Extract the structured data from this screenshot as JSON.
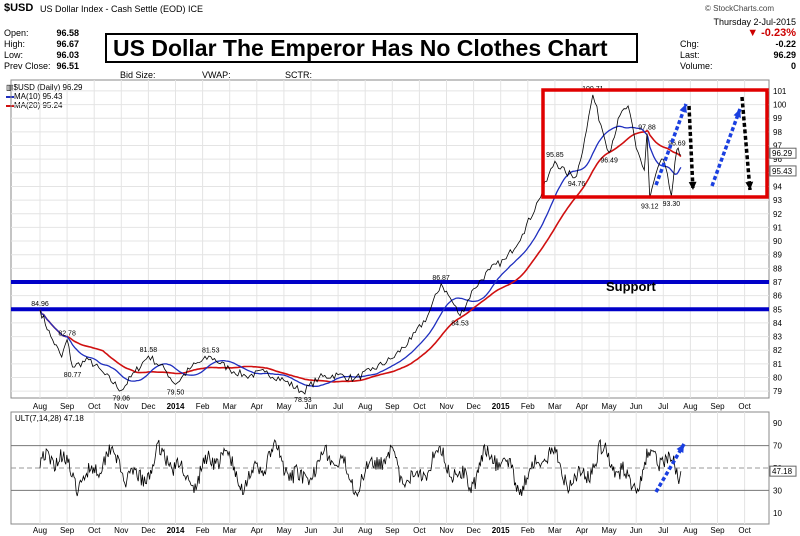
{
  "header": {
    "symbol": "$USD",
    "description": "US Dollar Index - Cash Settle (EOD)",
    "exchange": "ICE",
    "copyright": "© StockCharts.com",
    "day_date": "Thursday  2-Jul-2015",
    "pct_change": "▼ -0.23%",
    "stats_left": [
      {
        "label": "Open:",
        "value": "96.58"
      },
      {
        "label": "High:",
        "value": "96.67"
      },
      {
        "label": "Low:",
        "value": "96.03"
      },
      {
        "label": "Prev Close:",
        "value": "96.51"
      }
    ],
    "stats_right": [
      {
        "label": "Chg:",
        "value": "-0.22"
      },
      {
        "label": "Last:",
        "value": "96.29"
      },
      {
        "label": "Volume:",
        "value": "0"
      }
    ],
    "bid_size": "Bid Size:",
    "vwap": "VWAP:",
    "sctr": "SCTR:"
  },
  "title": "US Dollar The Emperor Has No Clothes Chart",
  "legend": {
    "line1": "▥$USD (Daily) 96.29",
    "line2": "MA(10) 95.43",
    "line3": "MA(20) 95.24"
  },
  "support_label": "Support",
  "osc_label": "ULT(7,14,28) 47.18",
  "colors": {
    "price": "#000000",
    "ma10": "#1f2fbf",
    "ma20": "#d01010",
    "support": "#0000c8",
    "box": "#e00000",
    "up_arrow": "#1a3fe0",
    "down_arrow": "#000000",
    "pct_down": "#cc0000"
  },
  "chart_data": [
    {
      "type": "line",
      "series": [
        {
          "name": "$USD (Daily)",
          "last": 96.29
        },
        {
          "name": "MA(10)",
          "last": 95.43
        },
        {
          "name": "MA(20)",
          "last": 95.24
        }
      ],
      "x_ticks": [
        "Aug",
        "Sep",
        "Oct",
        "Nov",
        "Dec",
        "2014",
        "Feb",
        "Mar",
        "Apr",
        "May",
        "Jun",
        "Jul",
        "Aug",
        "Sep",
        "Oct",
        "Nov",
        "Dec",
        "2015",
        "Feb",
        "Mar",
        "Apr",
        "May",
        "Jun",
        "Jul",
        "Aug",
        "Sep",
        "Oct"
      ],
      "y_ticks": [
        79,
        80,
        81,
        82,
        83,
        84,
        85,
        86,
        87,
        88,
        89,
        90,
        91,
        92,
        93,
        94,
        95,
        96,
        97,
        98,
        99,
        100,
        101
      ],
      "ylim": [
        78.5,
        101.8
      ],
      "annotations": [
        {
          "label": "84.96",
          "x_index": 0.0,
          "y": 84.96
        },
        {
          "label": "82.78",
          "x_index": 1.0,
          "y": 82.78
        },
        {
          "label": "80.77",
          "x_index": 1.2,
          "y": 80.77
        },
        {
          "label": "79.06",
          "x_index": 3.0,
          "y": 79.06
        },
        {
          "label": "81.58",
          "x_index": 4.0,
          "y": 81.58
        },
        {
          "label": "79.50",
          "x_index": 5.0,
          "y": 79.5
        },
        {
          "label": "81.53",
          "x_index": 6.3,
          "y": 81.53
        },
        {
          "label": "78.93",
          "x_index": 9.7,
          "y": 78.93
        },
        {
          "label": "86.87",
          "x_index": 14.8,
          "y": 86.87
        },
        {
          "label": "84.53",
          "x_index": 15.5,
          "y": 84.53
        },
        {
          "label": "95.85",
          "x_index": 19.0,
          "y": 95.85
        },
        {
          "label": "94.76",
          "x_index": 19.8,
          "y": 94.76
        },
        {
          "label": "100.71",
          "x_index": 20.4,
          "y": 100.71
        },
        {
          "label": "96.49",
          "x_index": 21.0,
          "y": 96.49
        },
        {
          "label": "97.88",
          "x_index": 22.4,
          "y": 97.88
        },
        {
          "label": "96.69",
          "x_index": 23.5,
          "y": 96.69
        },
        {
          "label": "93.12",
          "x_index": 22.5,
          "y": 93.12
        },
        {
          "label": "93.30",
          "x_index": 23.3,
          "y": 93.3
        }
      ],
      "horizontal_lines": [
        {
          "y": 87.0
        },
        {
          "y": 85.0
        }
      ],
      "last_value_tags": [
        "96.29",
        "95.43"
      ]
    },
    {
      "type": "line",
      "series": [
        {
          "name": "ULT(7,14,28)",
          "last": 47.18
        }
      ],
      "y_ticks": [
        10,
        30,
        50,
        70,
        90
      ],
      "ylim": [
        0,
        100
      ],
      "reference_lines": [
        30,
        50,
        70
      ],
      "last_value_tag": "47.18"
    }
  ]
}
